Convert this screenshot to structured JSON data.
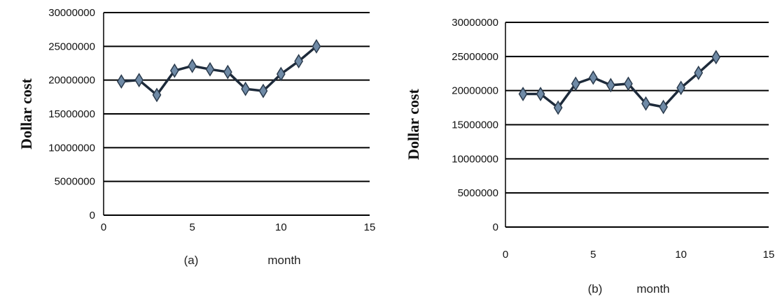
{
  "chart_data": [
    {
      "type": "line",
      "panel_label": "(a)",
      "xlabel": "month",
      "ylabel": "Dollar cost",
      "x": [
        1,
        2,
        3,
        4,
        5,
        6,
        7,
        8,
        9,
        10,
        11,
        12
      ],
      "series": [
        {
          "values": [
            19800000,
            20000000,
            17800000,
            21400000,
            22100000,
            21600000,
            21200000,
            18700000,
            18400000,
            20900000,
            22800000,
            25000000
          ]
        }
      ],
      "xlim": [
        0,
        15
      ],
      "ylim": [
        0,
        30000000
      ],
      "xticks": [
        "0",
        "5",
        "10",
        "15"
      ],
      "yticks": [
        "0",
        "5000000",
        "10000000",
        "15000000",
        "20000000",
        "25000000",
        "30000000"
      ],
      "grid": "horizontal",
      "line_color": "#1d2a3a",
      "marker_color": "#6f8aa6"
    },
    {
      "type": "line",
      "panel_label": "(b)",
      "xlabel": "month",
      "ylabel": "Dollar cost",
      "x": [
        1,
        2,
        3,
        4,
        5,
        6,
        7,
        8,
        9,
        10,
        11,
        12
      ],
      "series": [
        {
          "values": [
            19500000,
            19500000,
            17500000,
            21000000,
            21900000,
            20800000,
            21000000,
            18100000,
            17600000,
            20400000,
            22600000,
            24900000
          ]
        }
      ],
      "xlim": [
        0,
        15
      ],
      "ylim": [
        0,
        30000000
      ],
      "xticks": [
        "0",
        "5",
        "10",
        "15"
      ],
      "yticks": [
        "0",
        "5000000",
        "10000000",
        "15000000",
        "20000000",
        "25000000",
        "30000000"
      ],
      "grid": "horizontal",
      "line_color": "#1d2a3a",
      "marker_color": "#6f8aa6"
    }
  ]
}
